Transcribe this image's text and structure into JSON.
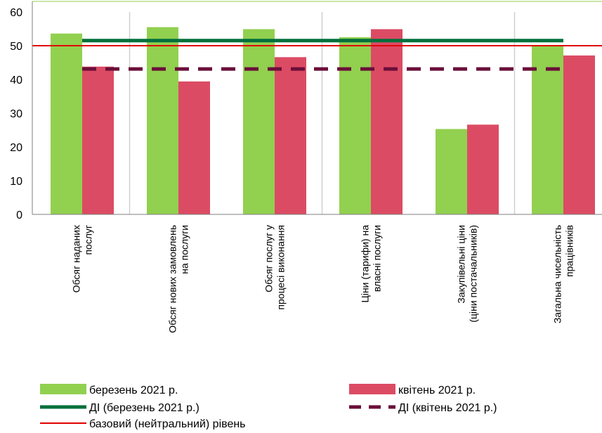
{
  "colors": {
    "march": "#92D050",
    "april": "#DC4B64",
    "di_march": "#00703C",
    "di_april": "#6B0F3A",
    "baseline": "#E00000",
    "grid": "#D0D0D0",
    "axis": "#7F7F7F"
  },
  "chart_data": {
    "type": "bar",
    "categories": [
      [
        "Обсяг наданих",
        "послуг"
      ],
      [
        "Обсяг нових замовлень",
        "на послуги"
      ],
      [
        "Обсяг послуг у",
        "процесі виконання"
      ],
      [
        "Ціни (тарифи) на",
        "власні послуги"
      ],
      [
        "Закупівельні ціни",
        "(ціни постачальників)"
      ],
      [
        "Загальна чисельність",
        "працівників"
      ]
    ],
    "series": [
      {
        "name": "березень 2021 р.",
        "values": [
          53.6,
          55.5,
          54.9,
          52.5,
          25.3,
          49.9
        ]
      },
      {
        "name": "квітень 2021 р.",
        "values": [
          43.8,
          39.4,
          46.6,
          54.9,
          26.6,
          47.1
        ]
      }
    ],
    "lines": [
      {
        "name": "ДІ (березень 2021 р.)",
        "value": 51.5,
        "style": "solid"
      },
      {
        "name": "ДІ (квітень 2021 р.)",
        "value": 43.1,
        "style": "dashed"
      },
      {
        "name": "базовий (нейтральний) рівень",
        "value": 50,
        "style": "thin"
      }
    ],
    "ylim": [
      0,
      60
    ],
    "yticks": [
      0,
      10,
      20,
      30,
      40,
      50,
      60
    ],
    "grid": "vertical separators between category pairs",
    "legend_position": "bottom"
  }
}
